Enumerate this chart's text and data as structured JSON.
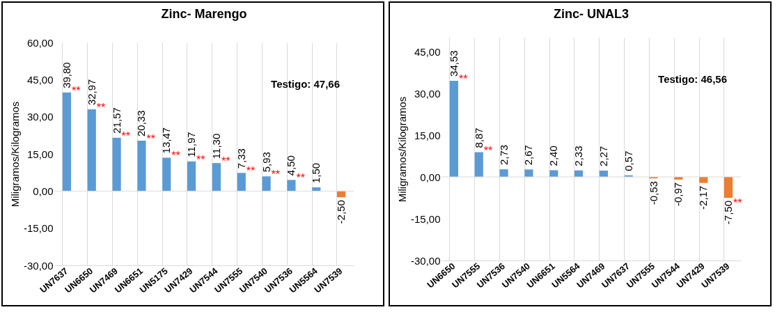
{
  "chart_data": [
    {
      "type": "bar",
      "title": "Zinc- Marengo",
      "ylabel": "Miligramos/Kilogramos",
      "categories": [
        "UN7637",
        "UN6650",
        "UN7469",
        "UN6651",
        "UN5175",
        "UN7429",
        "UN7544",
        "UN7555",
        "UN7540",
        "UN7536",
        "UN5564",
        "UN7539"
      ],
      "values": [
        39.8,
        32.97,
        21.57,
        20.33,
        13.47,
        11.97,
        11.3,
        7.33,
        5.93,
        4.5,
        1.5,
        -2.5
      ],
      "value_labels": [
        "39,80",
        "32,97",
        "21,57",
        "20,33",
        "13,47",
        "11,97",
        "11,30",
        "7,33",
        "5,93",
        "4,50",
        "1,50",
        "-2,50"
      ],
      "colors": [
        "#5b9bd5",
        "#5b9bd5",
        "#5b9bd5",
        "#5b9bd5",
        "#5b9bd5",
        "#5b9bd5",
        "#5b9bd5",
        "#5b9bd5",
        "#5b9bd5",
        "#5b9bd5",
        "#5b9bd5",
        "#ed7d31"
      ],
      "ylim": [
        -30,
        60
      ],
      "yticks": [
        {
          "value": -30,
          "label": "-30,00"
        },
        {
          "value": -15,
          "label": "-15,00"
        },
        {
          "value": 0,
          "label": "0,00"
        },
        {
          "value": 15,
          "label": "15,00"
        },
        {
          "value": 30,
          "label": "30,00"
        },
        {
          "value": 45,
          "label": "45,00"
        },
        {
          "value": 60,
          "label": "60,00"
        }
      ],
      "grid": "x",
      "ref_lines": [
        {
          "axis": "y",
          "value": 0,
          "color": "#d9d9d9"
        }
      ],
      "annotations": [
        "Testigo: 47,66",
        {
          "text": "**",
          "x": "UN7637",
          "y": 39.8
        },
        {
          "text": "**",
          "x": "UN6650",
          "y": 32.97
        },
        {
          "text": "**",
          "x": "UN7469",
          "y": 21.57
        },
        {
          "text": "**",
          "x": "UN6651",
          "y": 20.33
        },
        {
          "text": "**",
          "x": "UN5175",
          "y": 13.47
        },
        {
          "text": "**",
          "x": "UN7429",
          "y": 11.97
        },
        {
          "text": "**",
          "x": "UN7544",
          "y": 11.3
        },
        {
          "text": "**",
          "x": "UN7555",
          "y": 7.33
        },
        {
          "text": "**",
          "x": "UN7540",
          "y": 5.93
        },
        {
          "text": "**",
          "x": "UN7536",
          "y": 4.5
        }
      ]
    },
    {
      "type": "bar",
      "title": "Zinc- UNAL3",
      "ylabel": "Miligramos/Kilogramos",
      "categories": [
        "UN6650",
        "UN7555",
        "UN7536",
        "UN7540",
        "UN6651",
        "UN5564",
        "UN7469",
        "UN7637",
        "UN7555",
        "UN7544",
        "UN7429",
        "UN7539"
      ],
      "values": [
        34.53,
        8.87,
        2.73,
        2.67,
        2.4,
        2.33,
        2.27,
        0.57,
        -0.53,
        -0.97,
        -2.17,
        -7.5
      ],
      "value_labels": [
        "34,53",
        "8,87",
        "2,73",
        "2,67",
        "2,40",
        "2,33",
        "2,27",
        "0,57",
        "-0,53",
        "-0,97",
        "-2,17",
        "-7,50"
      ],
      "colors": [
        "#5b9bd5",
        "#5b9bd5",
        "#5b9bd5",
        "#5b9bd5",
        "#5b9bd5",
        "#5b9bd5",
        "#5b9bd5",
        "#5b9bd5",
        "#ed7d31",
        "#ed7d31",
        "#ed7d31",
        "#ed7d31"
      ],
      "ylim": [
        -30,
        50
      ],
      "yticks": [
        {
          "value": -30,
          "label": "-30,00"
        },
        {
          "value": -15,
          "label": "-15,00"
        },
        {
          "value": 0,
          "label": "0,00"
        },
        {
          "value": 15,
          "label": "15,00"
        },
        {
          "value": 30,
          "label": "30,00"
        },
        {
          "value": 45,
          "label": "45,00"
        }
      ],
      "grid": "x",
      "ref_lines": [
        {
          "axis": "y",
          "value": 0,
          "color": "#d9d9d9"
        }
      ],
      "annotations": [
        "Testigo: 46,56",
        {
          "text": "**",
          "x": "UN6650",
          "y": 34.53
        },
        {
          "text": "**",
          "x": "UN7555",
          "y": 8.87
        },
        {
          "text": "**",
          "x": "UN7539",
          "y": -7.5
        }
      ]
    }
  ]
}
